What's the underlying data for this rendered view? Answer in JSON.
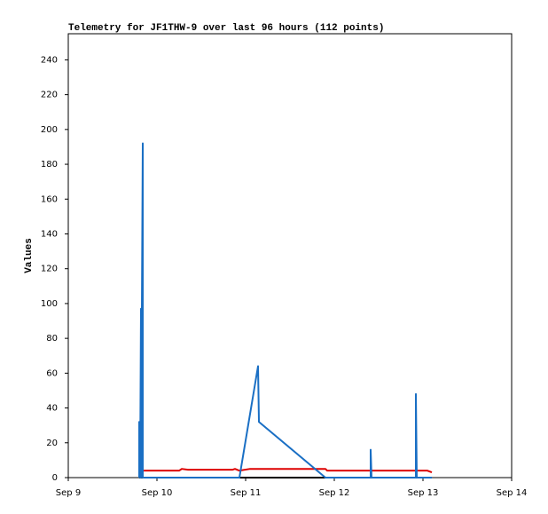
{
  "chart_data": {
    "type": "line",
    "title": "Telemetry for JF1THW-9 over last 96 hours (112 points)",
    "ylabel": "Values",
    "xlim": [
      0,
      5
    ],
    "ylim": [
      0,
      255
    ],
    "xticks": [
      {
        "value": 0,
        "label": "Sep 9"
      },
      {
        "value": 1,
        "label": "Sep 10"
      },
      {
        "value": 2,
        "label": "Sep 11"
      },
      {
        "value": 3,
        "label": "Sep 12"
      },
      {
        "value": 4,
        "label": "Sep 13"
      },
      {
        "value": 5,
        "label": "Sep 14"
      }
    ],
    "yticks": [
      0,
      20,
      40,
      60,
      80,
      100,
      120,
      140,
      160,
      180,
      200,
      220,
      240
    ],
    "grid": false,
    "series": [
      {
        "color": "#000000",
        "x": [
          0.8,
          4.1
        ],
        "values": [
          0,
          0
        ]
      },
      {
        "color": "#dd0000",
        "x": [
          0.8,
          1.25,
          1.28,
          1.35,
          1.85,
          1.88,
          1.93,
          2.05,
          2.9,
          2.92,
          3.9,
          4.05,
          4.1
        ],
        "values": [
          4,
          4,
          5,
          4.5,
          4.5,
          5,
          4,
          5,
          5,
          4,
          4,
          4,
          3
        ]
      },
      {
        "color": "#1a6fc4",
        "x": [
          0.8,
          0.8,
          0.81,
          0.82,
          0.82,
          0.84,
          0.84,
          1.93,
          2.14,
          2.15,
          2.9,
          3.41,
          3.41,
          3.42,
          3.92,
          3.92,
          3.93,
          4.1
        ],
        "values": [
          0,
          32,
          0,
          97,
          0,
          192,
          0,
          0,
          64,
          32,
          0,
          0,
          16,
          0,
          0,
          48,
          0,
          0
        ]
      }
    ]
  }
}
